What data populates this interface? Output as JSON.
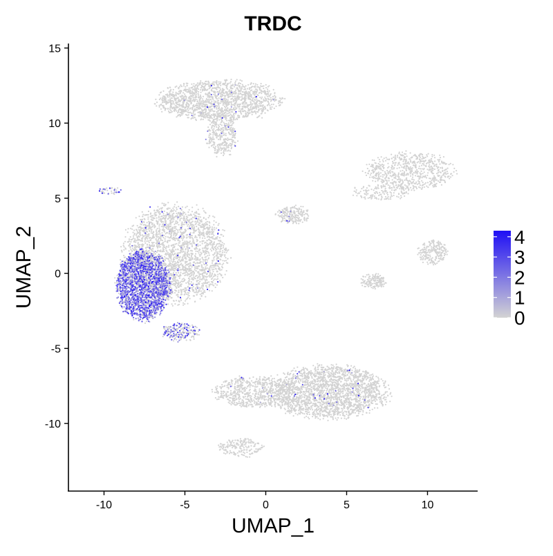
{
  "chart_data": {
    "type": "scatter",
    "title": "TRDC",
    "xlabel": "UMAP_1",
    "ylabel": "UMAP_2",
    "xlim": [
      -12.2,
      13.1
    ],
    "ylim": [
      -14.5,
      15.3
    ],
    "x_ticks": [
      -10,
      -5,
      0,
      5,
      10
    ],
    "x_tick_labels": [
      "-10",
      "-5",
      "0",
      "5",
      "10"
    ],
    "y_ticks": [
      -10,
      -5,
      0,
      5,
      10,
      15
    ],
    "y_tick_labels": [
      "-10",
      "-5",
      "0",
      "5",
      "10",
      "15"
    ],
    "grid": false,
    "legend_position": "right",
    "color_scale": {
      "low_color": "#d3d3d3",
      "high_color": "#1f0ff5",
      "min": 0,
      "max": 4.3,
      "ticks": [
        0,
        1,
        2,
        3,
        4
      ],
      "tick_labels": [
        "0",
        "1",
        "2",
        "3",
        "4"
      ]
    },
    "clusters": [
      {
        "name": "top",
        "cx": -2.9,
        "cy": 11.5,
        "rx": 3.7,
        "ry": 1.3,
        "n": 1600,
        "expr": 0.01
      },
      {
        "name": "top-stem",
        "cx": -2.7,
        "cy": 9.2,
        "rx": 0.9,
        "ry": 1.4,
        "n": 350,
        "expr": 0.02
      },
      {
        "name": "right-top",
        "cx": 8.9,
        "cy": 6.8,
        "rx": 2.6,
        "ry": 1.2,
        "n": 700,
        "expr": 0.0
      },
      {
        "name": "right-top-arm",
        "cx": 7.2,
        "cy": 5.4,
        "rx": 1.8,
        "ry": 0.5,
        "n": 160,
        "expr": 0.0
      },
      {
        "name": "right-mid",
        "cx": 10.3,
        "cy": 1.4,
        "rx": 0.9,
        "ry": 0.8,
        "n": 220,
        "expr": 0.0
      },
      {
        "name": "right-small",
        "cx": 6.6,
        "cy": -0.5,
        "rx": 0.8,
        "ry": 0.5,
        "n": 90,
        "expr": 0.0
      },
      {
        "name": "right-bottom",
        "cx": 6.8,
        "cy": -0.6,
        "rx": 0.6,
        "ry": 0.4,
        "n": 60,
        "expr": 0.0
      },
      {
        "name": "mid-small",
        "cx": 1.7,
        "cy": 3.9,
        "rx": 1.0,
        "ry": 0.6,
        "n": 200,
        "expr": 0.01
      },
      {
        "name": "far-left-strip",
        "cx": -9.6,
        "cy": 5.5,
        "rx": 0.7,
        "ry": 0.25,
        "n": 40,
        "expr": 0.3
      },
      {
        "name": "left-main-grey",
        "cx": -5.6,
        "cy": 1.3,
        "rx": 3.1,
        "ry": 3.1,
        "n": 2600,
        "expr": 0.02
      },
      {
        "name": "left-main-purple",
        "cx": -7.6,
        "cy": -0.8,
        "rx": 1.6,
        "ry": 2.2,
        "n": 2200,
        "expr": 0.7
      },
      {
        "name": "left-tail",
        "cx": -5.3,
        "cy": -3.9,
        "rx": 1.2,
        "ry": 0.6,
        "n": 200,
        "expr": 0.4
      },
      {
        "name": "bottom",
        "cx": 3.9,
        "cy": -7.9,
        "rx": 3.5,
        "ry": 1.7,
        "n": 2200,
        "expr": 0.01
      },
      {
        "name": "bottom-left",
        "cx": -0.6,
        "cy": -7.9,
        "rx": 2.6,
        "ry": 1.0,
        "n": 700,
        "expr": 0.01
      },
      {
        "name": "bottom-tail",
        "cx": -1.5,
        "cy": -11.6,
        "rx": 1.4,
        "ry": 0.6,
        "n": 180,
        "expr": 0.0
      }
    ]
  }
}
